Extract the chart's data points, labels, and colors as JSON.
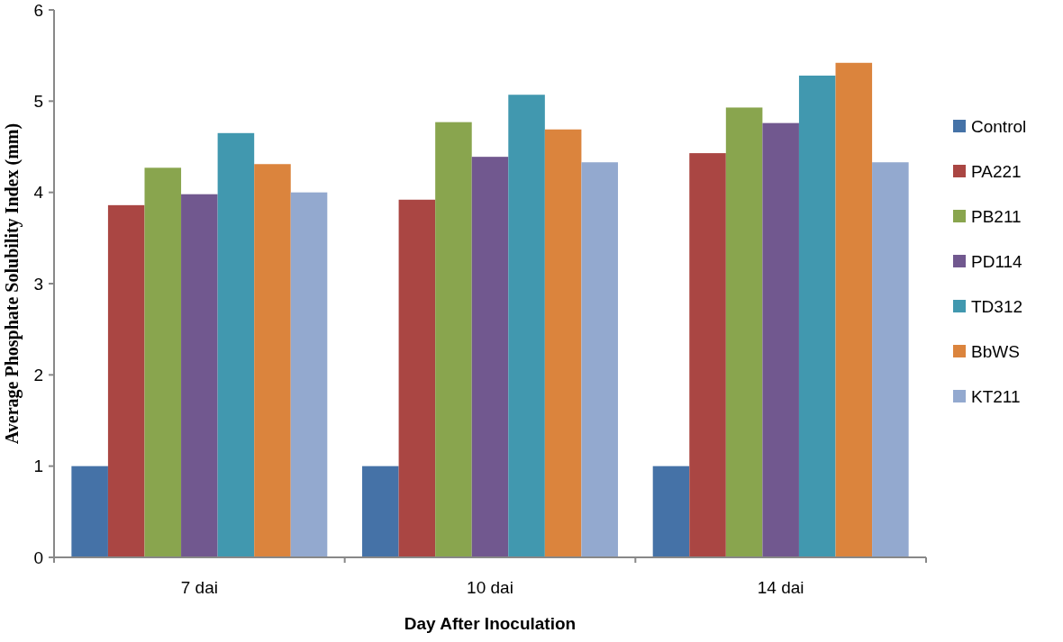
{
  "chart_data": {
    "type": "bar",
    "xlabel": "Day After Inoculation",
    "ylabel": "Average Phosphate Solubility Index (mm)",
    "categories": [
      "7 dai",
      "10 dai",
      "14 dai"
    ],
    "series": [
      {
        "name": "Control",
        "color": "#4572a7",
        "values": [
          1.0,
          1.0,
          1.0
        ]
      },
      {
        "name": "PA221",
        "color": "#aa4643",
        "values": [
          3.86,
          3.92,
          4.43
        ]
      },
      {
        "name": "PB211",
        "color": "#89a54e",
        "values": [
          4.27,
          4.77,
          4.93
        ]
      },
      {
        "name": "PD114",
        "color": "#71588f",
        "values": [
          3.98,
          4.39,
          4.76
        ]
      },
      {
        "name": "TD312",
        "color": "#4198af",
        "values": [
          4.65,
          5.07,
          5.28
        ]
      },
      {
        "name": "BbWS",
        "color": "#db843d",
        "values": [
          4.31,
          4.69,
          5.42
        ]
      },
      {
        "name": "KT211",
        "color": "#93a9cf",
        "values": [
          4.0,
          4.33,
          4.33
        ]
      }
    ],
    "ylim": [
      0,
      6
    ],
    "yticks": [
      0,
      1,
      2,
      3,
      4,
      5,
      6
    ],
    "legend": "right"
  }
}
